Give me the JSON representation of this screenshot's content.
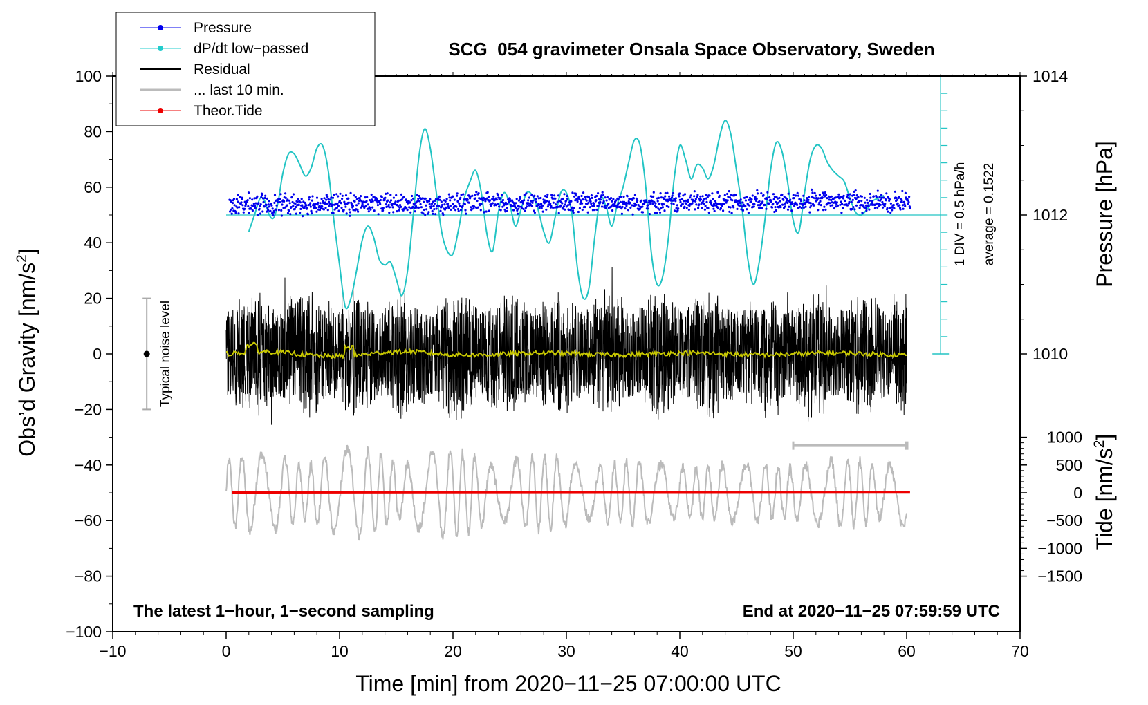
{
  "chart_data": {
    "type": "line",
    "title": "SCG_054 gravimeter Onsala Space Observatory, Sweden",
    "xlabel": "Time [min] from 2020−11−25 07:00:00 UTC",
    "ylabel_left": "Obs’d Gravity [nm/s",
    "ylabel_left_sup": "2",
    "ylabel_left_end": "]",
    "ylabel_right_pressure": "Pressure [hPa]",
    "ylabel_right_tide": "Tide [nm/s",
    "ylabel_right_tide_sup": "2",
    "ylabel_right_tide_end": "]",
    "xlim": [
      -10,
      70
    ],
    "ylim": [
      -100,
      100
    ],
    "x_ticks": [
      -10,
      0,
      10,
      20,
      30,
      40,
      50,
      60,
      70
    ],
    "x_tick_labels": [
      "−10",
      "0",
      "10",
      "20",
      "30",
      "40",
      "50",
      "60",
      "70"
    ],
    "y_ticks": [
      -100,
      -80,
      -60,
      -40,
      -20,
      0,
      20,
      40,
      60,
      80,
      100
    ],
    "y_tick_labels": [
      "−100",
      "−80",
      "−60",
      "−40",
      "−20",
      "0",
      "20",
      "40",
      "60",
      "80",
      "100"
    ],
    "pressure_ticks": [
      {
        "value": 1014,
        "label": "1014"
      },
      {
        "value": 1012,
        "label": "1012"
      },
      {
        "value": 1010,
        "label": "1010"
      }
    ],
    "pressure_scale": {
      "ref_hpa": 1012,
      "ref_gravity": 50,
      "gravity_per_hpa": 25
    },
    "tide_ticks": [
      {
        "value": 1000,
        "label": "1000"
      },
      {
        "value": 500,
        "label": "500"
      },
      {
        "value": 0,
        "label": "0"
      },
      {
        "value": -500,
        "label": "−500"
      },
      {
        "value": -1000,
        "label": "−1000"
      },
      {
        "value": -1500,
        "label": "−1500"
      }
    ],
    "tide_scale": {
      "ref_tide": 0,
      "ref_gravity": -50,
      "gravity_per_unit": 0.02
    },
    "legend": [
      {
        "label": "Pressure",
        "color": "#0000ee",
        "marker": true
      },
      {
        "label": "dP/dt low−passed",
        "color": "#22cccc",
        "marker": true
      },
      {
        "label": "Residual",
        "color": "#000000",
        "marker": false
      },
      {
        "label": "... last 10 min.",
        "color": "#bbbbbb",
        "marker": false
      },
      {
        "label": "Theor.Tide",
        "color": "#ee0000",
        "marker": true
      }
    ],
    "legend_position": "top-left",
    "annotations": {
      "left_note": "The latest 1−hour, 1−second sampling",
      "right_note": "End at 2020−11−25 07:59:59 UTC",
      "noise_label": "Typical noise level",
      "div_label": "1 DIV = 0.5 hPa/h",
      "avg_label": "average = 0.1522"
    },
    "noise_bar": {
      "x": -7,
      "center": 0,
      "low": -20,
      "high": 20
    },
    "dpdt_scale": {
      "x": 63,
      "baseline": 50,
      "top": 100,
      "bottom": 0,
      "div_step": 6.25
    },
    "series": [
      {
        "name": "dP/dt low-passed",
        "color": "#22c4c4",
        "x": [
          2.0,
          2.5,
          3.0,
          3.4,
          3.8,
          4.2,
          4.6,
          5.0,
          5.5,
          6.0,
          6.5,
          7.0,
          7.5,
          8.0,
          8.5,
          9.0,
          9.5,
          10.0,
          10.5,
          11.0,
          11.5,
          12.0,
          12.5,
          13.0,
          13.5,
          14.0,
          14.5,
          15.0,
          15.5,
          16.0,
          16.5,
          17.0,
          17.5,
          18.0,
          18.5,
          19.0,
          19.5,
          20.0,
          20.5,
          21.0,
          21.5,
          22.0,
          22.5,
          23.0,
          23.5,
          24.0,
          24.5,
          25.0,
          25.5,
          26.0,
          26.5,
          27.0,
          27.5,
          28.0,
          28.5,
          29.0,
          29.5,
          30.0,
          30.5,
          31.0,
          31.5,
          32.0,
          32.5,
          33.0,
          33.5,
          34.0,
          34.5,
          35.0,
          35.5,
          36.0,
          36.5,
          37.0,
          37.5,
          38.0,
          38.5,
          39.0,
          39.5,
          40.0,
          40.5,
          41.0,
          41.5,
          42.0,
          42.5,
          43.0,
          43.5,
          44.0,
          44.5,
          45.0,
          45.5,
          46.0,
          46.5,
          47.0,
          47.5,
          48.0,
          48.5,
          49.0,
          49.5,
          50.0,
          50.5,
          51.0,
          51.5,
          52.0,
          52.5,
          53.0,
          53.5,
          54.0,
          54.5,
          55.0,
          55.5,
          56.0,
          56.5,
          57.0,
          57.5,
          58.0
        ],
        "values": [
          44,
          50,
          56,
          55,
          50,
          49,
          55,
          65,
          72,
          72,
          68,
          64,
          67,
          74,
          75,
          66,
          48,
          32,
          17,
          20,
          30,
          41,
          46,
          42,
          34,
          32,
          33,
          27,
          21,
          30,
          50,
          71,
          81,
          74,
          59,
          44,
          37,
          36,
          45,
          56,
          62,
          66,
          58,
          43,
          37,
          51,
          58,
          54,
          46,
          52,
          58,
          57,
          52,
          44,
          40,
          49,
          58,
          58,
          50,
          30,
          20,
          24,
          42,
          56,
          53,
          46,
          54,
          60,
          69,
          77,
          75,
          60,
          36,
          25,
          28,
          42,
          63,
          75,
          70,
          63,
          68,
          67,
          63,
          68,
          78,
          84,
          79,
          66,
          52,
          34,
          25,
          33,
          48,
          66,
          76,
          73,
          62,
          48,
          44,
          58,
          70,
          75,
          74,
          69,
          66,
          64,
          62,
          56,
          51,
          50,
          52,
          55,
          56,
          57
        ]
      },
      {
        "name": "Pressure",
        "color": "#0000ee",
        "x_range": [
          0.3,
          60.3
        ],
        "hpa_start": 1012.15,
        "hpa_end": 1012.2,
        "scatter_hpa": 0.12
      },
      {
        "name": "Residual",
        "color": "#000000",
        "x_range": [
          0,
          60
        ],
        "amplitude": 20
      },
      {
        "name": "Residual smoothed",
        "color": "#c8c800",
        "x_range": [
          0,
          60
        ]
      },
      {
        "name": "... last 10 min.",
        "color": "#bbbbbb",
        "x_range": [
          0,
          60
        ],
        "tide_amplitude": 800
      },
      {
        "name": "Theor.Tide",
        "color": "#ee0000",
        "x_range": [
          0.5,
          60.3
        ],
        "tide": [
          0,
          10
        ]
      },
      {
        "name": "last 10 min marker",
        "color": "#bbbbbb",
        "x_range": [
          50,
          60
        ],
        "y": -33
      }
    ]
  }
}
